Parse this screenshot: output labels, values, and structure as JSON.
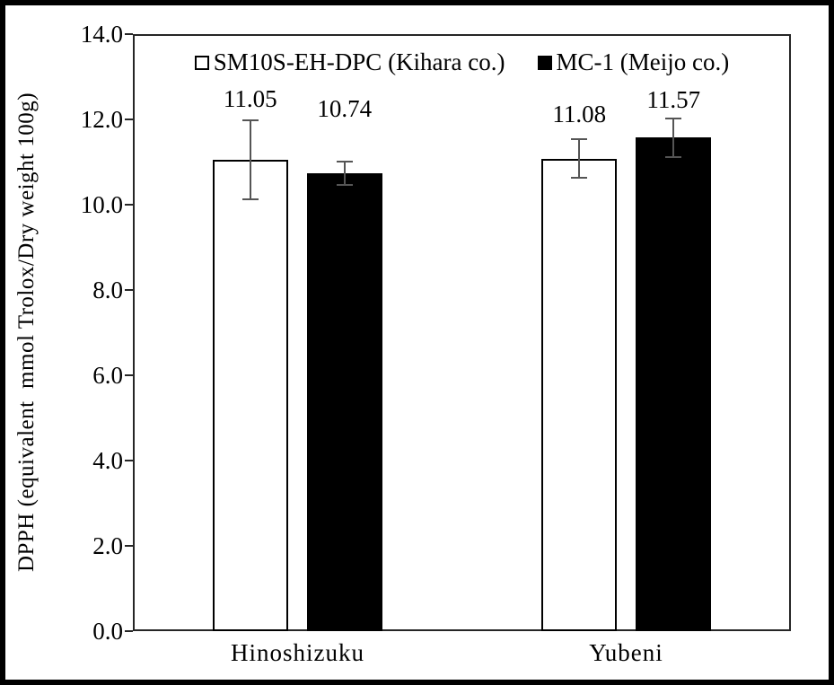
{
  "chart_data": {
    "type": "bar",
    "title": "",
    "xlabel": "",
    "ylabel": "DPPH (equivalent  mmol Trolox/Dry weight 100g)",
    "ylim": [
      0,
      14
    ],
    "ytick_step": 2,
    "yticks": [
      "14.0",
      "12.0",
      "10.0",
      "8.0",
      "6.0",
      "4.0",
      "2.0",
      "0.0"
    ],
    "categories": [
      "Hinoshizuku",
      "Yubeni"
    ],
    "series": [
      {
        "name": "SM10S-EH-DPC (Kihara co.)",
        "marker": "open-square",
        "fill": "#ffffff",
        "border": "#000000",
        "values": [
          11.05,
          11.08
        ],
        "errors": [
          0.93,
          0.45
        ]
      },
      {
        "name": "MC-1 (Meijo co.)",
        "marker": "filled-square",
        "fill": "#000000",
        "border": "#000000",
        "values": [
          10.74,
          11.57
        ],
        "errors": [
          0.28,
          0.45
        ]
      }
    ],
    "data_labels": [
      "11.05",
      "10.74",
      "11.08",
      "11.57"
    ],
    "legend_position": "top-inside-center",
    "grid": false,
    "error_bar_color": "#555555",
    "axis_color": "#262626",
    "background_color": "#ffffff"
  }
}
